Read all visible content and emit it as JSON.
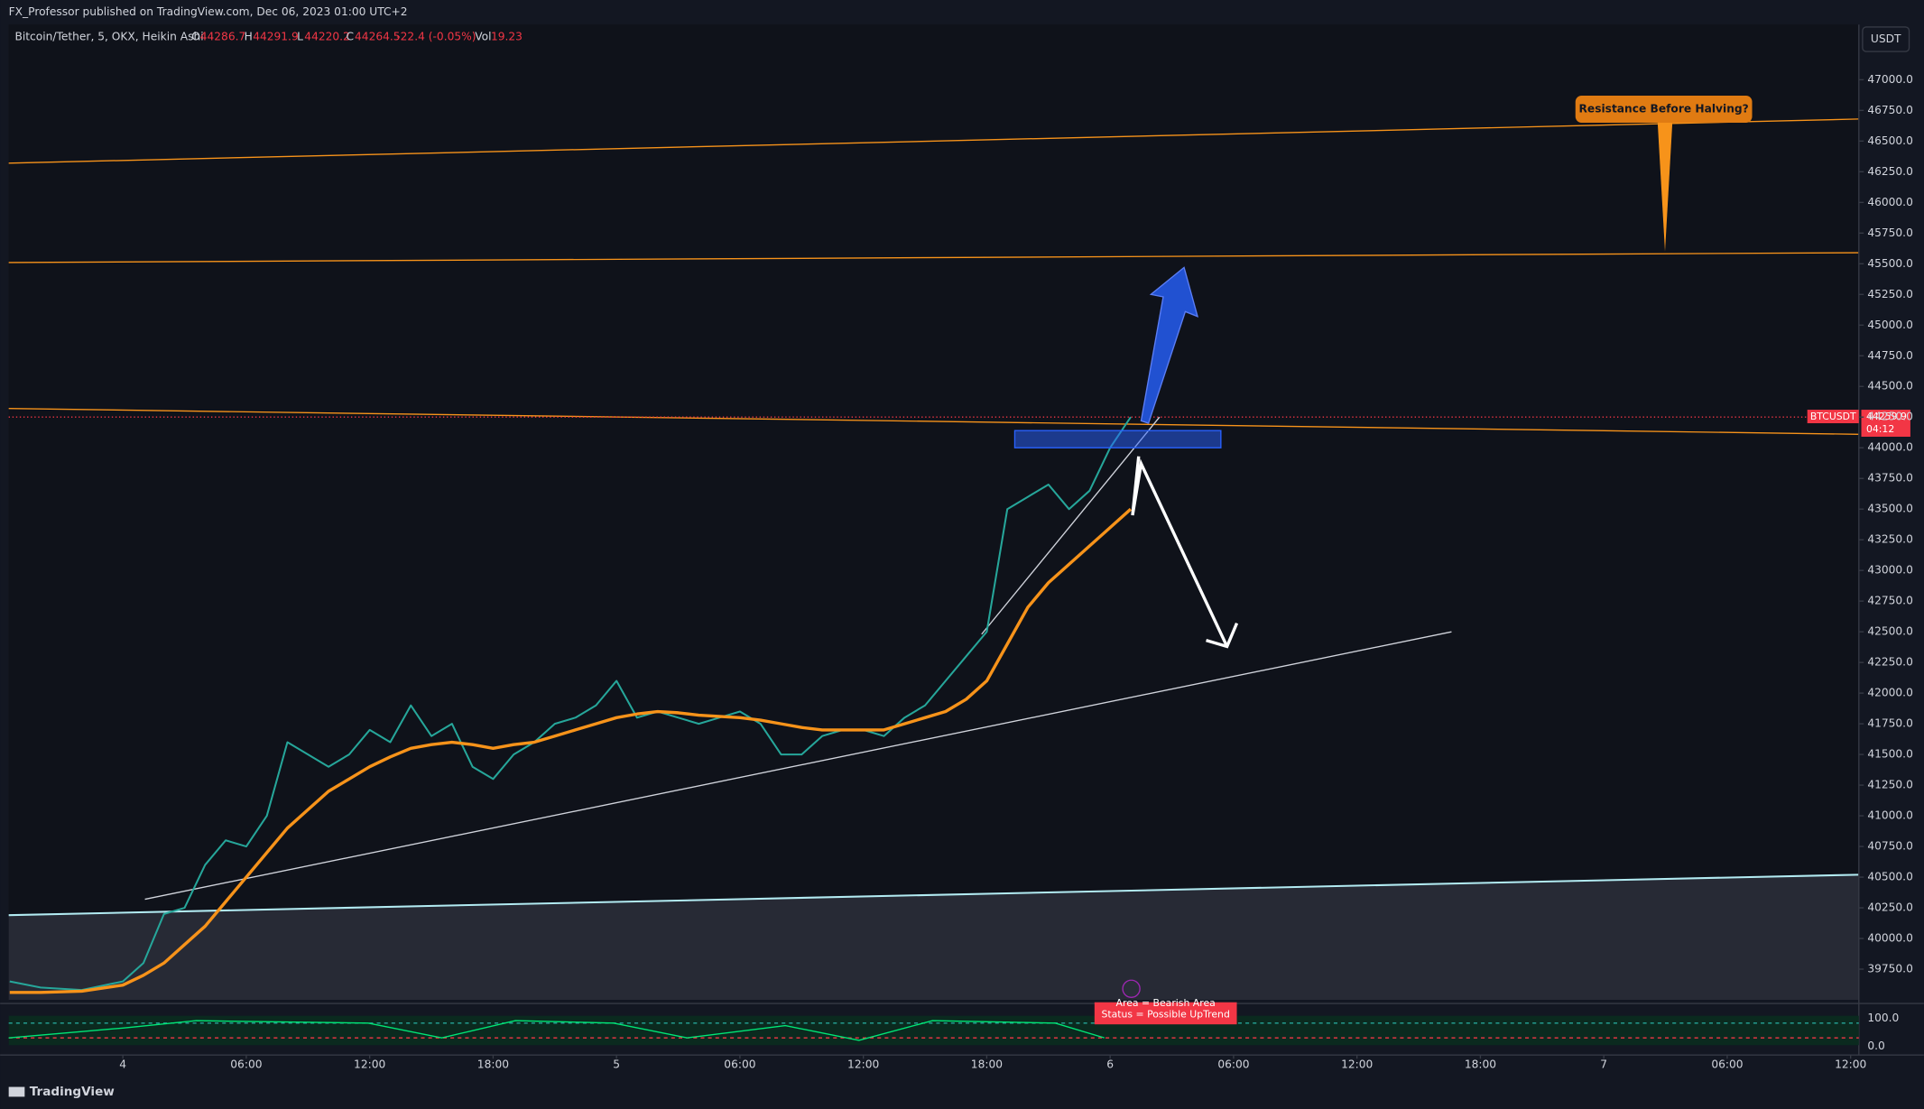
{
  "header": {
    "publisher": "FX_Professor published on TradingView.com, Dec 06, 2023 01:00 UTC+2"
  },
  "legend": {
    "symbol": "Bitcoin/Tether, 5, OKX, Heikin Ashi",
    "o_label": "O",
    "o": "44286.7",
    "h_label": "H",
    "h": "44291.9",
    "l_label": "L",
    "l": "44220.2",
    "c_label": "C",
    "c": "44264.5",
    "change": "-22.4 (-0.05%)",
    "vol_label": "Vol",
    "vol": "19.23"
  },
  "axis_unit": "USDT",
  "annotations": {
    "resistance": "Resistance Before Halving?",
    "symbol_tag": "BTCUSDT",
    "price_tag": "44259.9",
    "countdown": "04:12"
  },
  "indicator": {
    "area": "Area = Bearish Area",
    "status": "Status =  Possible UpTrend",
    "top": "100.0",
    "bottom": "0.0"
  },
  "footer": "TradingView",
  "chart_data": {
    "type": "line",
    "x": [
      -5.5,
      -4,
      -2,
      0,
      1,
      2,
      3,
      4,
      5,
      6,
      7,
      8,
      9,
      10,
      11,
      12,
      13,
      14,
      15,
      16,
      17,
      18,
      19,
      20,
      21,
      22,
      23,
      24,
      25,
      26,
      27,
      28,
      29,
      30,
      31,
      32,
      33,
      34,
      35,
      36,
      37,
      38,
      39,
      40,
      41,
      42,
      43,
      44,
      45,
      46,
      47,
      48,
      49
    ],
    "series": [
      {
        "color": "#26a69a",
        "values": [
          39650,
          39600,
          39580,
          39650,
          39800,
          40200,
          40250,
          40600,
          40800,
          40750,
          41000,
          41600,
          41500,
          41400,
          41500,
          41700,
          41600,
          41900,
          41650,
          41750,
          41400,
          41300,
          41500,
          41600,
          41750,
          41800,
          41900,
          42100,
          41800,
          41850,
          41800,
          41750,
          41800,
          41850,
          41750,
          41500,
          41500,
          41650,
          41700,
          41700,
          41650,
          41800,
          41900,
          42100,
          42300,
          42500,
          43500,
          43600,
          43700,
          43500,
          43650,
          44000,
          44250
        ]
      },
      {
        "color": "#f7931a",
        "values": [
          39560,
          39560,
          39570,
          39620,
          39700,
          39800,
          39950,
          40100,
          40300,
          40500,
          40700,
          40900,
          41050,
          41200,
          41300,
          41400,
          41480,
          41550,
          41580,
          41600,
          41580,
          41550,
          41580,
          41600,
          41650,
          41700,
          41750,
          41800,
          41830,
          41850,
          41840,
          41820,
          41810,
          41800,
          41780,
          41750,
          41720,
          41700,
          41700,
          41700,
          41700,
          41750,
          41800,
          41850,
          41950,
          42100,
          42400,
          42700,
          42900,
          43050,
          43200,
          43350,
          43500
        ]
      }
    ],
    "xlim": [
      -5.55,
      84.4
    ],
    "ylim": [
      39500,
      47450
    ],
    "xticks": [
      {
        "value": 0,
        "label": "4"
      },
      {
        "value": 6,
        "label": "06:00"
      },
      {
        "value": 12,
        "label": "12:00"
      },
      {
        "value": 18,
        "label": "18:00"
      },
      {
        "value": 24,
        "label": "5"
      },
      {
        "value": 30,
        "label": "06:00"
      },
      {
        "value": 36,
        "label": "12:00"
      },
      {
        "value": 42,
        "label": "18:00"
      },
      {
        "value": 48,
        "label": "6"
      },
      {
        "value": 54,
        "label": "06:00"
      },
      {
        "value": 60,
        "label": "12:00"
      },
      {
        "value": 66,
        "label": "18:00"
      },
      {
        "value": 72,
        "label": "7"
      },
      {
        "value": 78,
        "label": "06:00"
      },
      {
        "value": 84,
        "label": "12:00"
      }
    ],
    "yticks": [
      {
        "value": 47000,
        "label": "47000.0"
      },
      {
        "value": 46750,
        "label": "46750.0"
      },
      {
        "value": 46500,
        "label": "46500.0"
      },
      {
        "value": 46250,
        "label": "46250.0"
      },
      {
        "value": 46000,
        "label": "46000.0"
      },
      {
        "value": 45750,
        "label": "45750.0"
      },
      {
        "value": 45500,
        "label": "45500.0"
      },
      {
        "value": 45250,
        "label": "45250.0"
      },
      {
        "value": 45000,
        "label": "45000.0"
      },
      {
        "value": 44750,
        "label": "44750.0"
      },
      {
        "value": 44500,
        "label": "44500.0"
      },
      {
        "value": 44250,
        "label": "44250.0"
      },
      {
        "value": 44000,
        "label": "44000.0"
      },
      {
        "value": 43750,
        "label": "43750.0"
      },
      {
        "value": 43500,
        "label": "43500.0"
      },
      {
        "value": 43250,
        "label": "43250.0"
      },
      {
        "value": 43000,
        "label": "43000.0"
      },
      {
        "value": 42750,
        "label": "42750.0"
      },
      {
        "value": 42500,
        "label": "42500.0"
      },
      {
        "value": 42250,
        "label": "42250.0"
      },
      {
        "value": 42000,
        "label": "42000.0"
      },
      {
        "value": 41750,
        "label": "41750.0"
      },
      {
        "value": 41500,
        "label": "41500.0"
      },
      {
        "value": 41250,
        "label": "41250.0"
      },
      {
        "value": 41000,
        "label": "41000.0"
      },
      {
        "value": 40750,
        "label": "40750.0"
      },
      {
        "value": 40500,
        "label": "40500.0"
      },
      {
        "value": 40250,
        "label": "40250.0"
      },
      {
        "value": 40000,
        "label": "40000.0"
      },
      {
        "value": 39750,
        "label": "39750.0"
      }
    ]
  }
}
